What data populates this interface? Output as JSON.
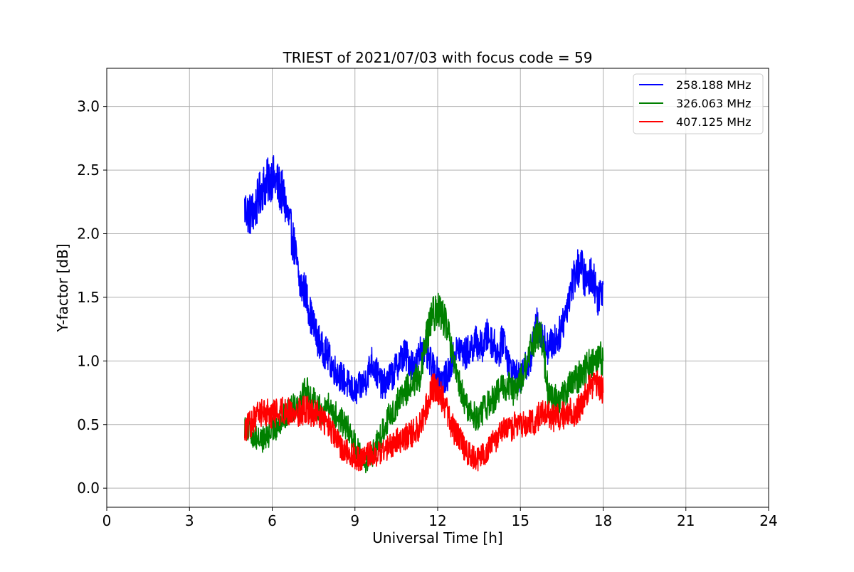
{
  "chart_data": {
    "type": "line",
    "title": "TRIEST of 2021/07/03 with focus code = 59",
    "xlabel": "Universal Time [h]",
    "ylabel": "Y-factor [dB]",
    "xlim": [
      0,
      24
    ],
    "ylim": [
      -0.15,
      3.3
    ],
    "xticks": [
      0,
      3,
      6,
      9,
      12,
      15,
      18,
      21,
      24
    ],
    "xtick_labels": [
      "0",
      "3",
      "6",
      "9",
      "12",
      "15",
      "18",
      "21",
      "24"
    ],
    "yticks": [
      0.0,
      0.5,
      1.0,
      1.5,
      2.0,
      2.5,
      3.0
    ],
    "ytick_labels": [
      "0.0",
      "0.5",
      "1.0",
      "1.5",
      "2.0",
      "2.5",
      "3.0"
    ],
    "grid": true,
    "legend_position": "top-right",
    "series": [
      {
        "name": "258.188 MHz",
        "color": "#0000ff",
        "x": [
          5.0,
          5.2,
          5.4,
          5.6,
          5.8,
          6.0,
          6.2,
          6.4,
          6.6,
          6.8,
          7.0,
          7.2,
          7.4,
          7.6,
          7.8,
          8.0,
          8.2,
          8.4,
          8.6,
          8.8,
          9.0,
          9.2,
          9.4,
          9.6,
          9.8,
          10.0,
          10.2,
          10.4,
          10.6,
          10.8,
          11.0,
          11.2,
          11.4,
          11.6,
          11.8,
          12.0,
          12.2,
          12.4,
          12.6,
          12.8,
          13.0,
          13.2,
          13.4,
          13.6,
          13.8,
          14.0,
          14.2,
          14.4,
          14.6,
          14.8,
          15.0,
          15.2,
          15.4,
          15.6,
          15.8,
          16.0,
          16.2,
          16.4,
          16.6,
          16.8,
          17.0,
          17.2,
          17.4,
          17.6,
          17.8,
          18.0
        ],
        "y": [
          2.2,
          2.15,
          2.2,
          2.35,
          2.4,
          2.45,
          2.38,
          2.3,
          2.1,
          1.9,
          1.6,
          1.55,
          1.35,
          1.2,
          1.1,
          1.05,
          0.95,
          0.9,
          0.85,
          0.8,
          0.75,
          0.8,
          0.85,
          1.0,
          0.9,
          0.8,
          0.85,
          0.9,
          1.0,
          1.05,
          1.0,
          0.95,
          1.1,
          1.05,
          0.95,
          0.9,
          0.85,
          0.9,
          1.05,
          1.1,
          1.05,
          1.1,
          1.15,
          1.1,
          1.2,
          1.15,
          1.05,
          1.2,
          0.95,
          0.9,
          0.85,
          0.95,
          1.05,
          1.3,
          1.2,
          1.1,
          1.15,
          1.2,
          1.35,
          1.55,
          1.7,
          1.75,
          1.6,
          1.7,
          1.5,
          1.6
        ]
      },
      {
        "name": "326.063 MHz",
        "color": "#008000",
        "x": [
          5.0,
          5.2,
          5.4,
          5.6,
          5.8,
          6.0,
          6.2,
          6.4,
          6.6,
          6.8,
          7.0,
          7.2,
          7.4,
          7.6,
          7.8,
          8.0,
          8.2,
          8.4,
          8.6,
          8.8,
          9.0,
          9.2,
          9.4,
          9.6,
          9.8,
          10.0,
          10.2,
          10.4,
          10.6,
          10.8,
          11.0,
          11.2,
          11.4,
          11.6,
          11.8,
          12.0,
          12.2,
          12.4,
          12.6,
          12.8,
          13.0,
          13.2,
          13.4,
          13.6,
          13.8,
          14.0,
          14.2,
          14.4,
          14.6,
          14.8,
          15.0,
          15.2,
          15.4,
          15.6,
          15.8,
          16.0,
          16.2,
          16.4,
          16.6,
          16.8,
          17.0,
          17.2,
          17.4,
          17.6,
          17.8,
          18.0
        ],
        "y": [
          0.5,
          0.45,
          0.4,
          0.38,
          0.4,
          0.45,
          0.5,
          0.55,
          0.6,
          0.65,
          0.7,
          0.8,
          0.7,
          0.65,
          0.6,
          0.65,
          0.6,
          0.55,
          0.5,
          0.45,
          0.35,
          0.25,
          0.2,
          0.25,
          0.35,
          0.45,
          0.55,
          0.6,
          0.7,
          0.75,
          0.8,
          0.85,
          0.9,
          1.2,
          1.35,
          1.4,
          1.35,
          1.2,
          0.95,
          0.8,
          0.65,
          0.6,
          0.55,
          0.6,
          0.65,
          0.7,
          0.75,
          0.8,
          0.8,
          0.75,
          0.85,
          0.95,
          1.1,
          1.25,
          1.15,
          0.75,
          0.7,
          0.7,
          0.75,
          0.8,
          0.85,
          0.9,
          0.95,
          1.0,
          1.05,
          1.0
        ]
      },
      {
        "name": "407.125 MHz",
        "color": "#ff0000",
        "x": [
          5.0,
          5.2,
          5.4,
          5.6,
          5.8,
          6.0,
          6.2,
          6.4,
          6.6,
          6.8,
          7.0,
          7.2,
          7.4,
          7.6,
          7.8,
          8.0,
          8.2,
          8.4,
          8.6,
          8.8,
          9.0,
          9.2,
          9.4,
          9.6,
          9.8,
          10.0,
          10.2,
          10.4,
          10.6,
          10.8,
          11.0,
          11.2,
          11.4,
          11.6,
          11.8,
          12.0,
          12.2,
          12.4,
          12.6,
          12.8,
          13.0,
          13.2,
          13.4,
          13.6,
          13.8,
          14.0,
          14.2,
          14.4,
          14.6,
          14.8,
          15.0,
          15.2,
          15.4,
          15.6,
          15.8,
          16.0,
          16.2,
          16.4,
          16.6,
          16.8,
          17.0,
          17.2,
          17.4,
          17.6,
          17.8,
          18.0
        ],
        "y": [
          0.45,
          0.5,
          0.55,
          0.6,
          0.6,
          0.58,
          0.6,
          0.62,
          0.6,
          0.58,
          0.6,
          0.62,
          0.6,
          0.58,
          0.55,
          0.5,
          0.42,
          0.35,
          0.3,
          0.28,
          0.25,
          0.22,
          0.25,
          0.28,
          0.25,
          0.3,
          0.32,
          0.35,
          0.38,
          0.4,
          0.42,
          0.45,
          0.5,
          0.65,
          0.8,
          0.78,
          0.7,
          0.55,
          0.45,
          0.4,
          0.3,
          0.25,
          0.22,
          0.25,
          0.3,
          0.35,
          0.4,
          0.45,
          0.45,
          0.5,
          0.5,
          0.52,
          0.5,
          0.55,
          0.6,
          0.58,
          0.55,
          0.55,
          0.58,
          0.6,
          0.6,
          0.65,
          0.75,
          0.8,
          0.82,
          0.75
        ]
      }
    ]
  }
}
